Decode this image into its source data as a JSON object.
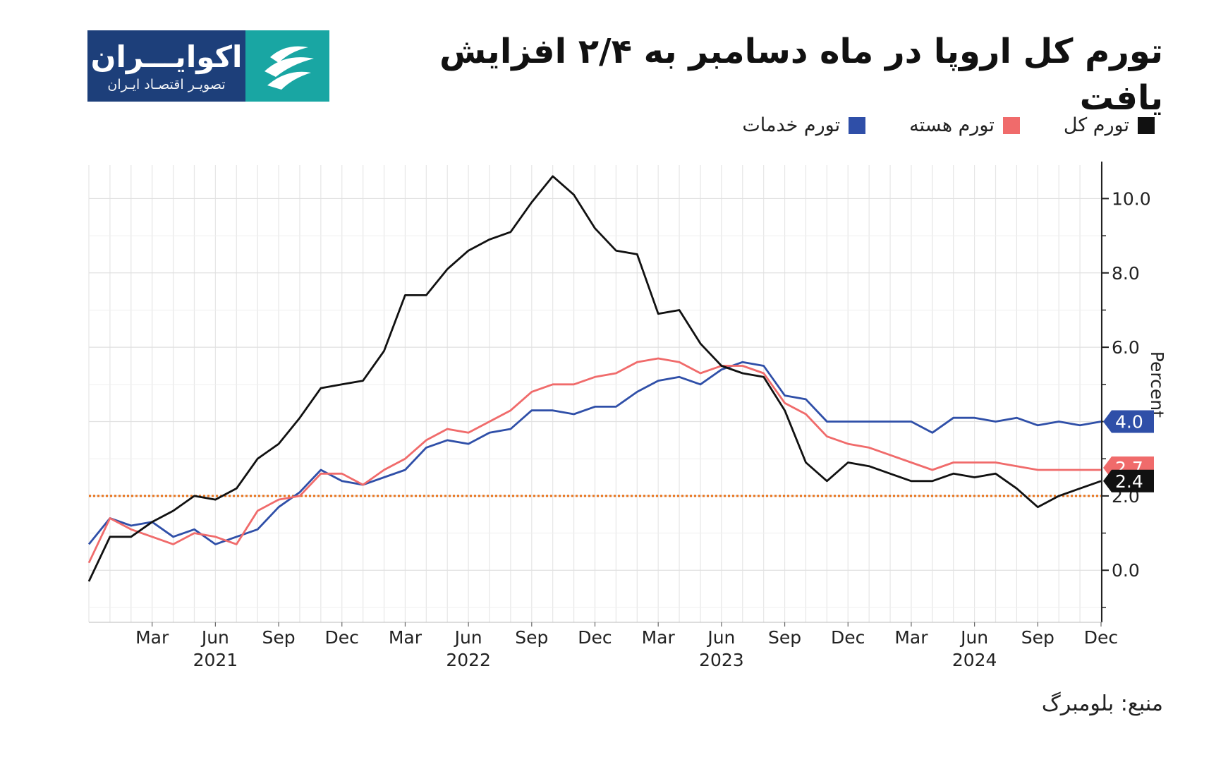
{
  "logo": {
    "name": "اکوایـــران",
    "tagline": "تصویـر اقتصـاد ایـران",
    "mark_icon": "ecoiran-logo-mark-icon"
  },
  "title": "تورم کل اروپا در ماه دسامبر به ۲/۴ افزایش یافت",
  "legend": [
    {
      "label": "تورم کل",
      "color": "#111111"
    },
    {
      "label": "تورم هسته",
      "color": "#f06b6b"
    },
    {
      "label": "تورم خدمات",
      "color": "#2f4fa8"
    }
  ],
  "source": "منبع: بلومبرگ",
  "chart_data": {
    "type": "line",
    "x": [
      "2020-12",
      "2021-01",
      "2021-02",
      "2021-03",
      "2021-04",
      "2021-05",
      "2021-06",
      "2021-07",
      "2021-08",
      "2021-09",
      "2021-10",
      "2021-11",
      "2021-12",
      "2022-01",
      "2022-02",
      "2022-03",
      "2022-04",
      "2022-05",
      "2022-06",
      "2022-07",
      "2022-08",
      "2022-09",
      "2022-10",
      "2022-11",
      "2022-12",
      "2023-01",
      "2023-02",
      "2023-03",
      "2023-04",
      "2023-05",
      "2023-06",
      "2023-07",
      "2023-08",
      "2023-09",
      "2023-10",
      "2023-11",
      "2023-12",
      "2024-01",
      "2024-02",
      "2024-03",
      "2024-04",
      "2024-05",
      "2024-06",
      "2024-07",
      "2024-08",
      "2024-09",
      "2024-10",
      "2024-11",
      "2024-12"
    ],
    "series": [
      {
        "name": "تورم کل",
        "color": "#111111",
        "values": [
          -0.3,
          0.9,
          0.9,
          1.3,
          1.6,
          2.0,
          1.9,
          2.2,
          3.0,
          3.4,
          4.1,
          4.9,
          5.0,
          5.1,
          5.9,
          7.4,
          7.4,
          8.1,
          8.6,
          8.9,
          9.1,
          9.9,
          10.6,
          10.1,
          9.2,
          8.6,
          8.5,
          6.9,
          7.0,
          6.1,
          5.5,
          5.3,
          5.2,
          4.3,
          2.9,
          2.4,
          2.9,
          2.8,
          2.6,
          2.4,
          2.4,
          2.6,
          2.5,
          2.6,
          2.2,
          1.7,
          2.0,
          2.2,
          2.4
        ]
      },
      {
        "name": "تورم هسته",
        "color": "#f06b6b",
        "values": [
          0.2,
          1.4,
          1.1,
          0.9,
          0.7,
          1.0,
          0.9,
          0.7,
          1.6,
          1.9,
          2.0,
          2.6,
          2.6,
          2.3,
          2.7,
          3.0,
          3.5,
          3.8,
          3.7,
          4.0,
          4.3,
          4.8,
          5.0,
          5.0,
          5.2,
          5.3,
          5.6,
          5.7,
          5.6,
          5.3,
          5.5,
          5.5,
          5.3,
          4.5,
          4.2,
          3.6,
          3.4,
          3.3,
          3.1,
          2.9,
          2.7,
          2.9,
          2.9,
          2.9,
          2.8,
          2.7,
          2.7,
          2.7,
          2.7
        ]
      },
      {
        "name": "تورم خدمات",
        "color": "#2f4fa8",
        "values": [
          0.7,
          1.4,
          1.2,
          1.3,
          0.9,
          1.1,
          0.7,
          0.9,
          1.1,
          1.7,
          2.1,
          2.7,
          2.4,
          2.3,
          2.5,
          2.7,
          3.3,
          3.5,
          3.4,
          3.7,
          3.8,
          4.3,
          4.3,
          4.2,
          4.4,
          4.4,
          4.8,
          5.1,
          5.2,
          5.0,
          5.4,
          5.6,
          5.5,
          4.7,
          4.6,
          4.0,
          4.0,
          4.0,
          4.0,
          4.0,
          3.7,
          4.1,
          4.1,
          4.0,
          4.1,
          3.9,
          4.0,
          3.9,
          4.0
        ]
      }
    ],
    "x_tick_labels": [
      {
        "date": "2021-03",
        "label": "Mar"
      },
      {
        "date": "2021-06",
        "label": "Jun",
        "year": "2021"
      },
      {
        "date": "2021-09",
        "label": "Sep"
      },
      {
        "date": "2021-12",
        "label": "Dec"
      },
      {
        "date": "2022-03",
        "label": "Mar"
      },
      {
        "date": "2022-06",
        "label": "Jun",
        "year": "2022"
      },
      {
        "date": "2022-09",
        "label": "Sep"
      },
      {
        "date": "2022-12",
        "label": "Dec"
      },
      {
        "date": "2023-03",
        "label": "Mar"
      },
      {
        "date": "2023-06",
        "label": "Jun",
        "year": "2023"
      },
      {
        "date": "2023-09",
        "label": "Sep"
      },
      {
        "date": "2023-12",
        "label": "Dec"
      },
      {
        "date": "2024-03",
        "label": "Mar"
      },
      {
        "date": "2024-06",
        "label": "Jun",
        "year": "2024"
      },
      {
        "date": "2024-09",
        "label": "Sep"
      },
      {
        "date": "2024-12",
        "label": "Dec"
      }
    ],
    "y_ticks": [
      0,
      2,
      4,
      6,
      8,
      10
    ],
    "y_tick_labels": [
      "0.0",
      "2.0",
      "4.0",
      "6.0",
      "8.0",
      "10.0"
    ],
    "ylabel": "Percent",
    "ylim": [
      -1.4,
      10.9
    ],
    "y_axis_side": "right",
    "grid": true,
    "reference_line": {
      "value": 2.0,
      "color": "#e8731a",
      "style": "dotted"
    },
    "end_labels": [
      {
        "text": "4.0",
        "value": 4.0,
        "color": "#2f4fa8"
      },
      {
        "text": "2.7",
        "value": 2.7,
        "color": "#f06b6b"
      },
      {
        "text": "2.4",
        "value": 2.4,
        "color": "#111111"
      }
    ]
  }
}
